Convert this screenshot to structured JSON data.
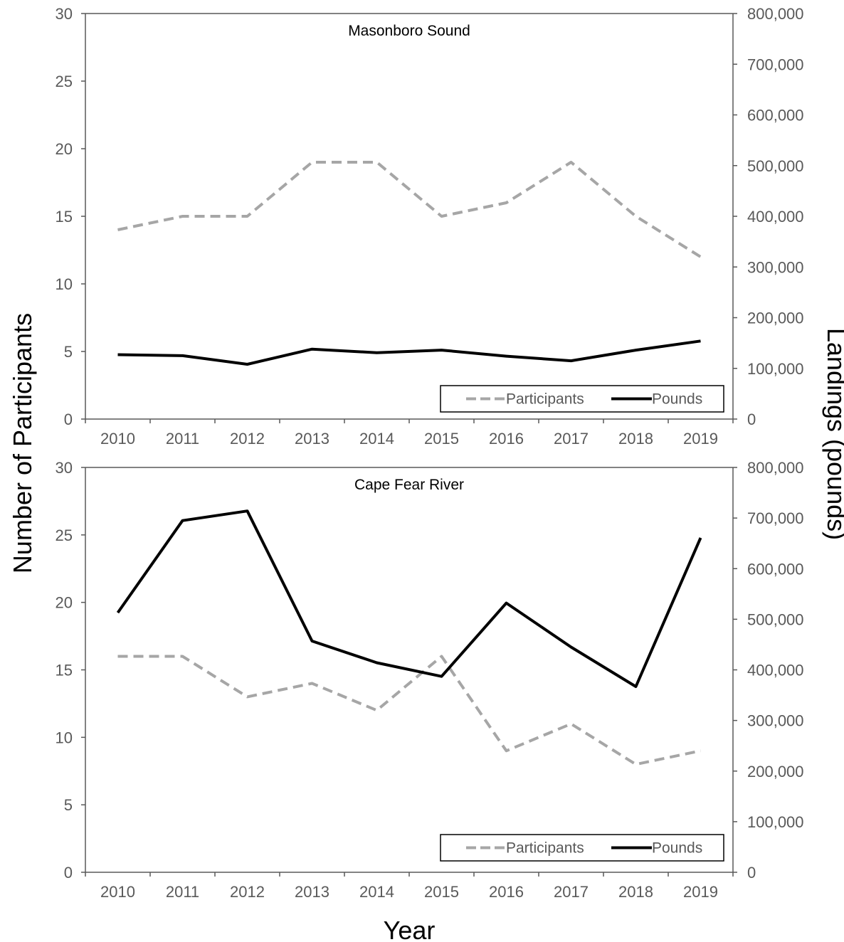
{
  "figure": {
    "y_axis_title": "Number of Participants",
    "y2_axis_title": "Landings (pounds)",
    "x_axis_title": "Year"
  },
  "colors": {
    "participants": "#a6a6a6",
    "pounds": "#000000",
    "axis": "#595959"
  },
  "chart_data": [
    {
      "type": "line",
      "title": "Masonboro Sound",
      "x": [
        2010,
        2011,
        2012,
        2013,
        2014,
        2015,
        2016,
        2017,
        2018,
        2019
      ],
      "ylabel": "Number of Participants",
      "y2label": "Landings (pounds)",
      "xlabel": "Year",
      "ylim": [
        0,
        30
      ],
      "y2lim": [
        0,
        800000
      ],
      "yticks": [
        "0",
        "5",
        "10",
        "15",
        "20",
        "25",
        "30"
      ],
      "y2ticks": [
        "0",
        "100,000",
        "200,000",
        "300,000",
        "400,000",
        "500,000",
        "600,000",
        "700,000",
        "800,000"
      ],
      "legend_position": "bottom-right",
      "grid": false,
      "series": [
        {
          "name": "Participants",
          "axis": "left",
          "style": "dashed",
          "values": [
            14,
            15,
            15,
            19,
            19,
            15,
            16,
            19,
            15,
            12
          ]
        },
        {
          "name": "Pounds",
          "axis": "right",
          "style": "solid",
          "values": [
            127000,
            125000,
            108000,
            138000,
            131000,
            136000,
            124000,
            115000,
            136000,
            154000
          ]
        }
      ]
    },
    {
      "type": "line",
      "title": "Cape Fear River",
      "x": [
        2010,
        2011,
        2012,
        2013,
        2014,
        2015,
        2016,
        2017,
        2018,
        2019
      ],
      "ylabel": "Number of Participants",
      "y2label": "Landings (pounds)",
      "xlabel": "Year",
      "ylim": [
        0,
        30
      ],
      "y2lim": [
        0,
        800000
      ],
      "yticks": [
        "0",
        "5",
        "10",
        "15",
        "20",
        "25",
        "30"
      ],
      "y2ticks": [
        "0",
        "100,000",
        "200,000",
        "300,000",
        "400,000",
        "500,000",
        "600,000",
        "700,000",
        "800,000"
      ],
      "legend_position": "bottom-right",
      "grid": false,
      "series": [
        {
          "name": "Participants",
          "axis": "left",
          "style": "dashed",
          "values": [
            16,
            16,
            13,
            14,
            12,
            16,
            9,
            11,
            8,
            9
          ]
        },
        {
          "name": "Pounds",
          "axis": "right",
          "style": "solid",
          "values": [
            513000,
            695000,
            714000,
            457000,
            414000,
            387000,
            532000,
            445000,
            367000,
            661000
          ]
        }
      ]
    }
  ]
}
